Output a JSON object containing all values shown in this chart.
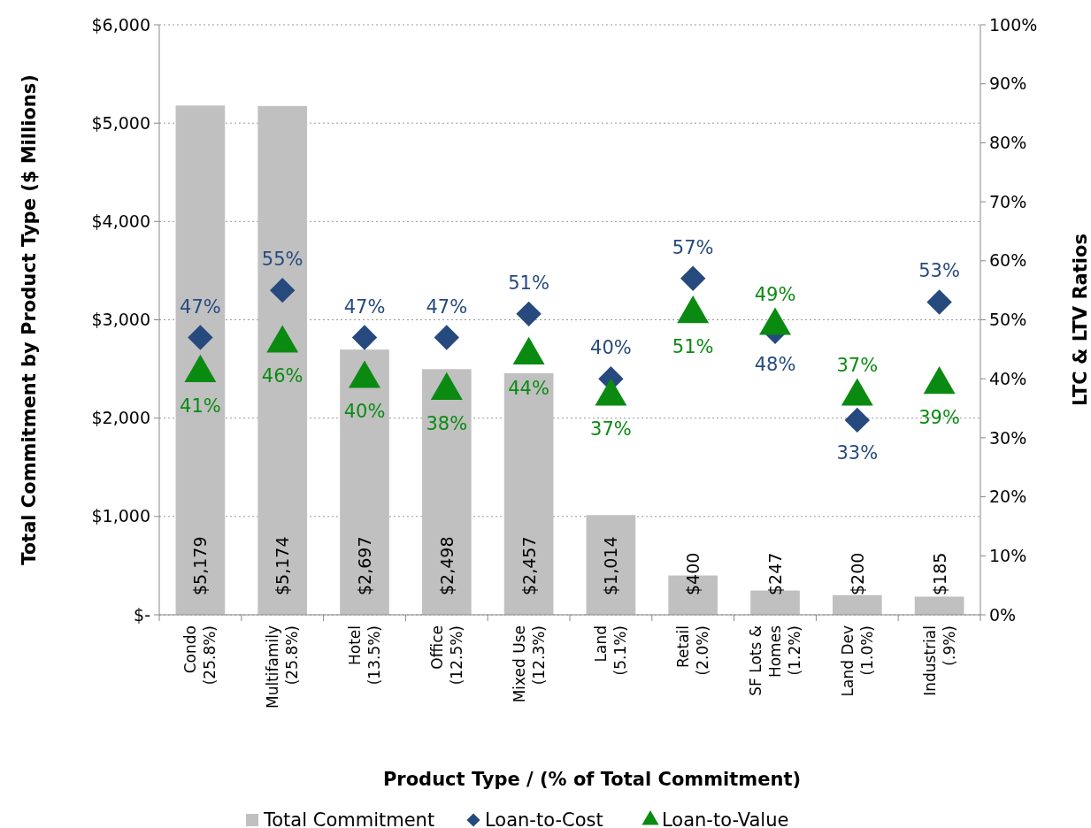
{
  "chart_data": {
    "type": "bar",
    "categories": [
      "Condo\n(25.8%)",
      "Multifamily\n(25.8%)",
      "Hotel\n(13.5%)",
      "Office\n(12.5%)",
      "Mixed Use\n(12.3%)",
      "Land\n(5.1%)",
      "Retail\n(2.0%)",
      "SF Lots &\nHomes\n(1.2%)",
      "Land Dev\n(1.0%)",
      "Industrial\n(.9%)"
    ],
    "series": [
      {
        "name": "Total Commitment",
        "color": "#c0c0c0",
        "values": [
          5179,
          5174,
          2697,
          2498,
          2457,
          1014,
          400,
          247,
          200,
          185
        ],
        "value_labels": [
          "$5,179",
          "$5,174",
          "$2,697",
          "$2,498",
          "$2,457",
          "$1,014",
          "$400",
          "$247",
          "$200",
          "$185"
        ]
      },
      {
        "name": "Loan-to-Cost",
        "type": "scatter",
        "axis": "y2",
        "marker": "diamond",
        "color": "#264a7e",
        "values": [
          47,
          55,
          47,
          47,
          51,
          40,
          57,
          48,
          33,
          53
        ],
        "value_labels": [
          "47%",
          "55%",
          "47%",
          "47%",
          "51%",
          "40%",
          "57%",
          "48%",
          "33%",
          "53%"
        ]
      },
      {
        "name": "Loan-to-Value",
        "type": "scatter",
        "axis": "y2",
        "marker": "triangle",
        "color": "#0b8a12",
        "values": [
          41,
          46,
          40,
          38,
          44,
          37,
          51,
          49,
          37,
          39
        ],
        "value_labels": [
          "41%",
          "46%",
          "40%",
          "38%",
          "44%",
          "37%",
          "51%",
          "49%",
          "37%",
          "39%"
        ]
      }
    ],
    "ylabel": "Total Commitment by Product Type ($ Millions)",
    "y2label": "LTC & LTV Ratios",
    "xlabel": "Product Type / (% of Total Commitment)",
    "ylim": [
      0,
      6000
    ],
    "yticks": [
      {
        "value": 0,
        "label": "$-"
      },
      {
        "value": 1000,
        "label": "$1,000"
      },
      {
        "value": 2000,
        "label": "$2,000"
      },
      {
        "value": 3000,
        "label": "$3,000"
      },
      {
        "value": 4000,
        "label": "$4,000"
      },
      {
        "value": 5000,
        "label": "$5,000"
      },
      {
        "value": 6000,
        "label": "$6,000"
      }
    ],
    "y2lim": [
      0,
      100
    ],
    "y2ticks": [
      {
        "value": 0,
        "label": "0%"
      },
      {
        "value": 10,
        "label": "10%"
      },
      {
        "value": 20,
        "label": "20%"
      },
      {
        "value": 30,
        "label": "30%"
      },
      {
        "value": 40,
        "label": "40%"
      },
      {
        "value": 50,
        "label": "50%"
      },
      {
        "value": 60,
        "label": "60%"
      },
      {
        "value": 70,
        "label": "70%"
      },
      {
        "value": 80,
        "label": "80%"
      },
      {
        "value": 90,
        "label": "90%"
      },
      {
        "value": 100,
        "label": "100%"
      }
    ],
    "grid": "y",
    "legend": "bottom"
  }
}
